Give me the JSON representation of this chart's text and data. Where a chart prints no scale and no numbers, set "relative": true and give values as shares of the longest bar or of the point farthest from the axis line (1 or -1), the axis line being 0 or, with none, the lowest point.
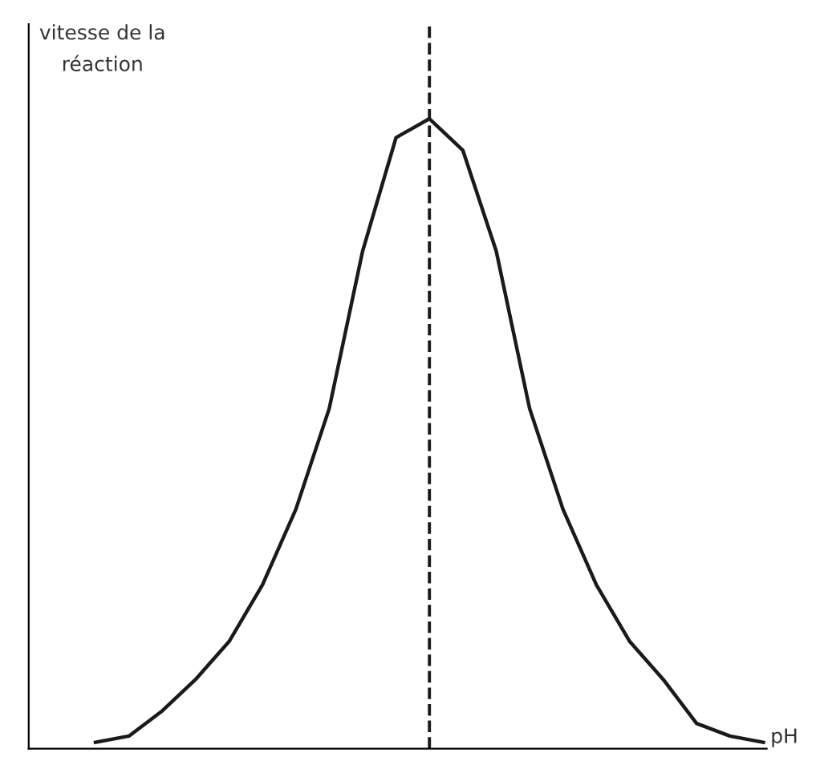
{
  "chart_data": {
    "type": "line",
    "relative": true,
    "ylabel": "vitesse de la\nréaction",
    "xlabel": "pH",
    "categories": [
      null,
      null,
      null,
      null,
      null,
      null,
      null,
      null,
      null,
      null,
      null,
      null,
      null,
      null,
      null,
      null,
      null,
      null,
      null,
      null,
      null
    ],
    "series": [
      {
        "color": "#1a1a1a",
        "values": [
          0.01,
          0.02,
          0.06,
          0.11,
          0.17,
          0.26,
          0.38,
          0.54,
          0.79,
          0.97,
          1,
          0.95,
          0.79,
          0.54,
          0.38,
          0.26,
          0.17,
          0.11,
          0.04,
          0.02,
          0.01
        ]
      }
    ],
    "line_style": "solid",
    "marker": "none",
    "grid": false,
    "legend": false
  }
}
